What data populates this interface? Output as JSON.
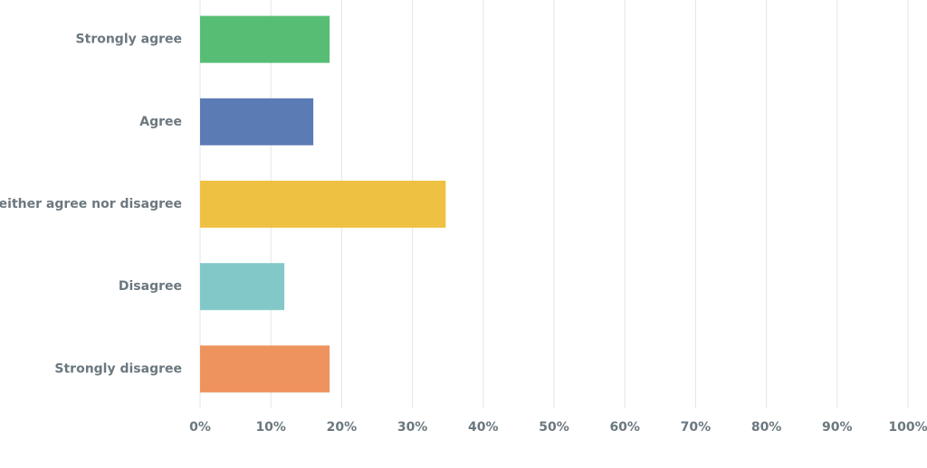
{
  "chart_data": {
    "type": "bar",
    "orientation": "horizontal",
    "categories": [
      "Strongly agree",
      "Agree",
      "Neither agree nor disagree",
      "Disagree",
      "Strongly disagree"
    ],
    "values": [
      18.3,
      16.0,
      34.7,
      11.9,
      18.3
    ],
    "colors": [
      "#57bd75",
      "#5b7bb5",
      "#efc142",
      "#82c8c9",
      "#ef935e"
    ],
    "xlim": [
      0,
      100
    ],
    "xticks": [
      {
        "value": 0,
        "label": "0%"
      },
      {
        "value": 10,
        "label": "10%"
      },
      {
        "value": 20,
        "label": "20%"
      },
      {
        "value": 30,
        "label": "30%"
      },
      {
        "value": 40,
        "label": "40%"
      },
      {
        "value": 50,
        "label": "50%"
      },
      {
        "value": 60,
        "label": "60%"
      },
      {
        "value": 70,
        "label": "70%"
      },
      {
        "value": 80,
        "label": "80%"
      },
      {
        "value": 90,
        "label": "90%"
      },
      {
        "value": 100,
        "label": "100%"
      }
    ],
    "grid": true
  }
}
